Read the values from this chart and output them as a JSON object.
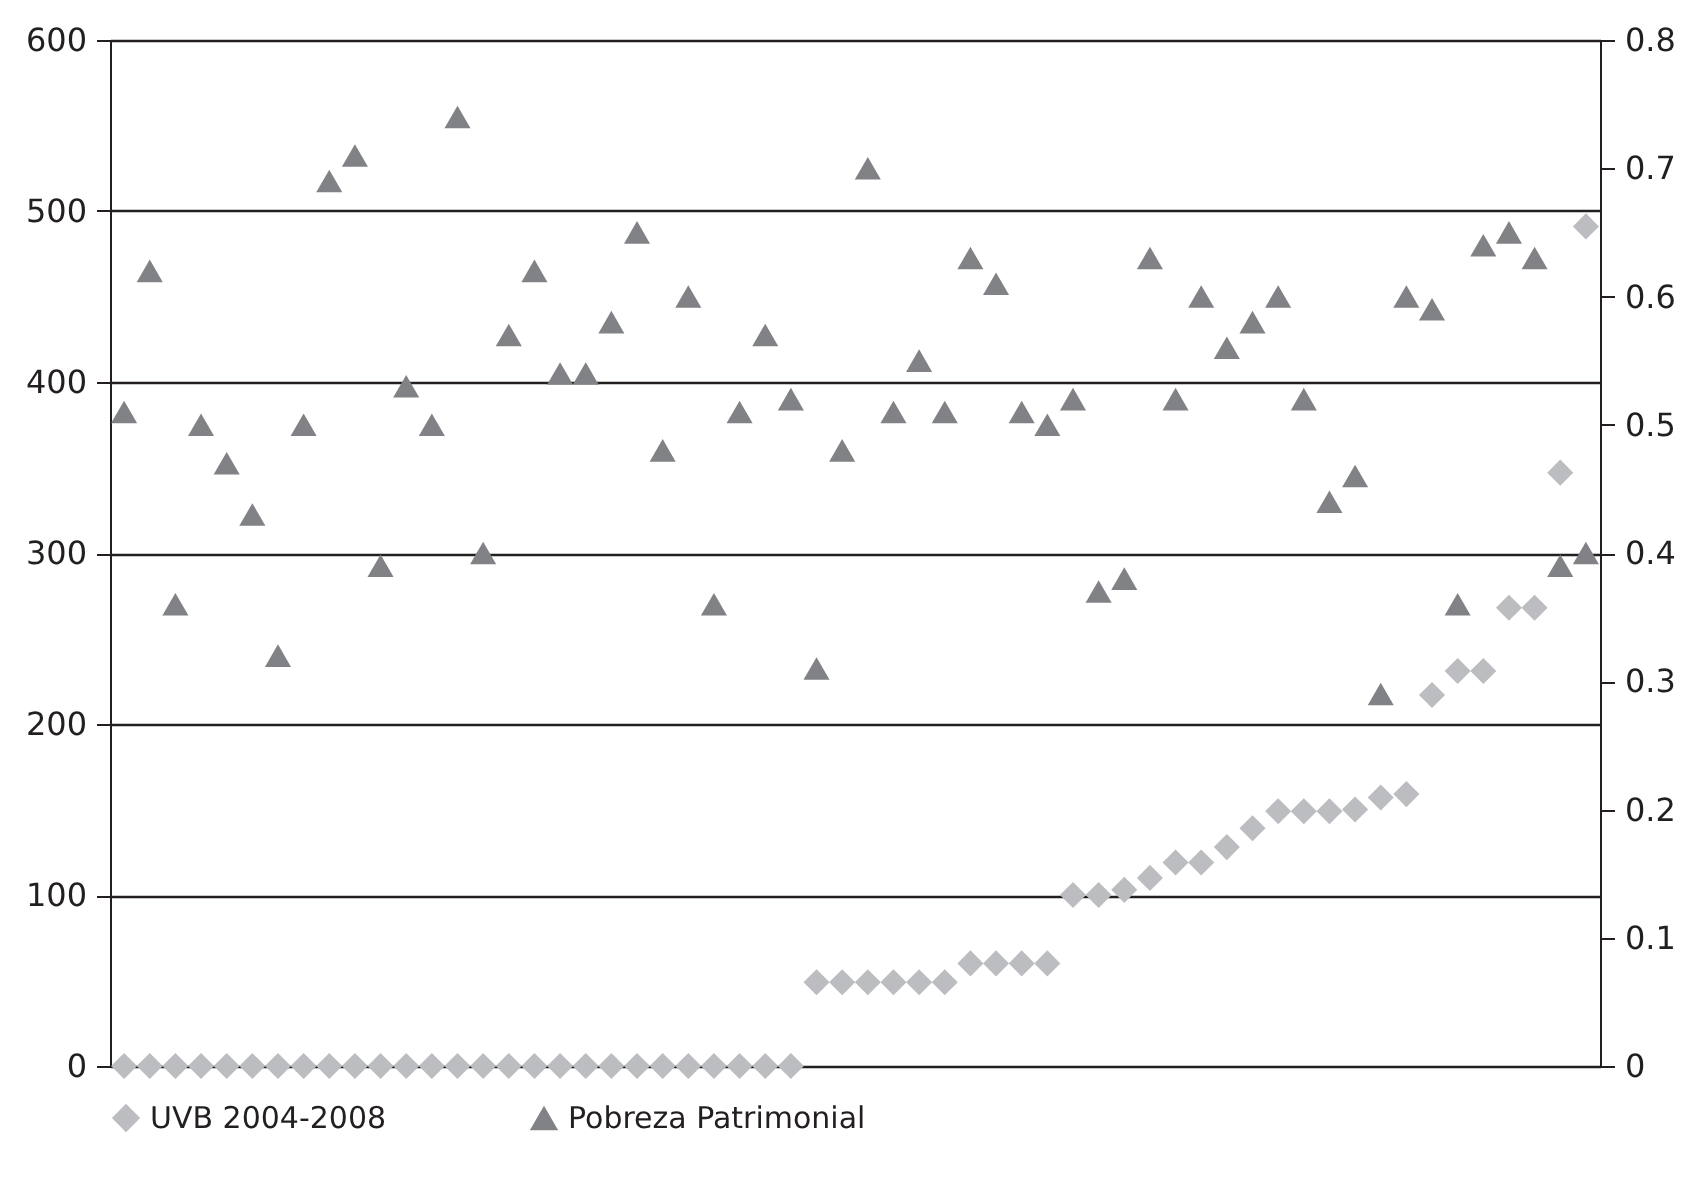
{
  "chart_data": {
    "type": "scatter",
    "categories": [
      null,
      null,
      null,
      null,
      null,
      null,
      null,
      null,
      null,
      null,
      null,
      null,
      null,
      null,
      null,
      null,
      null,
      null,
      null,
      null,
      null,
      null,
      null,
      null,
      null,
      null,
      null,
      null,
      null,
      null,
      null,
      null,
      null,
      null,
      null,
      null,
      null,
      null,
      null,
      null,
      null,
      null,
      null,
      null,
      null,
      null,
      null,
      null,
      null,
      null,
      null,
      null,
      null,
      null,
      null,
      null,
      null,
      null
    ],
    "series": [
      {
        "name": "UVB 2004-2008",
        "color": "#bcbdc0",
        "marker": "diamond",
        "values": [
          0,
          0,
          0,
          0,
          0,
          0,
          0,
          0,
          0,
          0,
          0,
          0,
          0,
          0,
          0,
          0,
          0,
          0,
          0,
          0,
          0,
          0,
          0,
          0,
          0,
          0,
          0,
          49,
          49,
          49,
          49,
          49,
          49,
          60,
          60,
          60,
          60,
          100,
          100,
          103,
          110,
          119,
          119,
          128,
          139,
          149,
          149,
          149,
          150,
          157,
          159,
          217,
          231,
          231,
          268,
          268,
          347,
          491
        ]
      },
      {
        "name": "Pobreza Patrimonial",
        "color": "#808285",
        "marker": "triangle",
        "axis": "y2",
        "values": [
          0.51,
          0.62,
          0.36,
          0.5,
          0.47,
          0.43,
          0.32,
          0.5,
          0.69,
          0.71,
          0.39,
          0.53,
          0.5,
          0.74,
          0.4,
          0.57,
          0.62,
          0.54,
          0.54,
          0.58,
          0.65,
          0.48,
          0.6,
          0.36,
          0.51,
          0.57,
          0.52,
          0.31,
          0.48,
          0.7,
          0.51,
          0.55,
          0.51,
          0.63,
          0.61,
          0.51,
          0.5,
          0.52,
          0.37,
          0.38,
          0.63,
          0.52,
          0.6,
          0.56,
          0.58,
          0.6,
          0.52,
          0.44,
          0.46,
          0.29,
          0.6,
          0.59,
          0.36,
          0.64,
          0.65,
          0.63,
          0.39,
          0.4
        ]
      }
    ],
    "ylim": [
      0,
      600
    ],
    "yticks": [
      0,
      100,
      200,
      300,
      400,
      500,
      600
    ],
    "y2lim": [
      0,
      0.8
    ],
    "y2ticks": [
      0,
      0.1,
      0.2,
      0.3,
      0.4,
      0.5,
      0.6,
      0.7,
      0.8
    ],
    "grid": "y",
    "legend": "bottom",
    "tick_labels": "y"
  }
}
